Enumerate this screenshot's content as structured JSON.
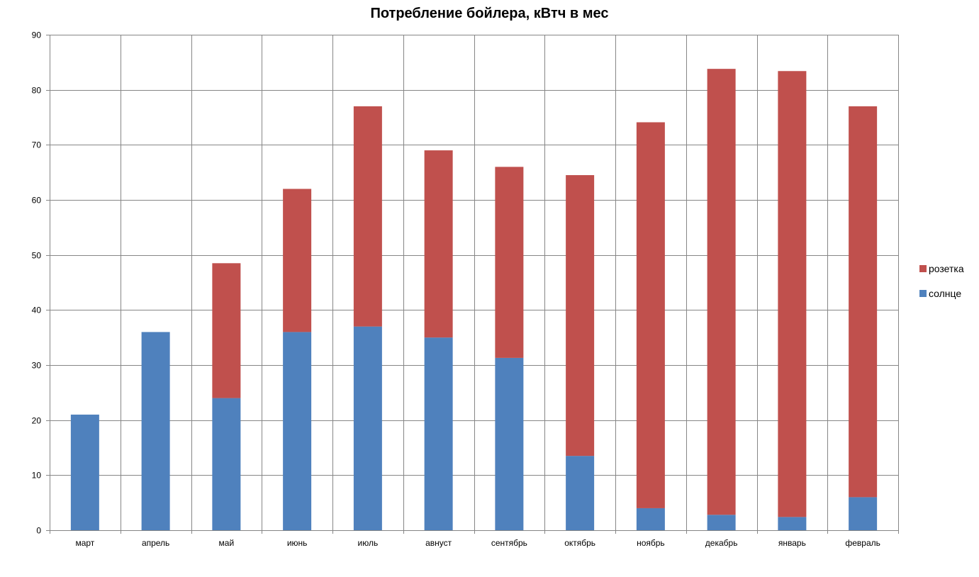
{
  "chart_data": {
    "type": "bar",
    "stacked": true,
    "title": "Потребление бойлера, кВтч в мес",
    "xlabel": "",
    "ylabel": "",
    "ylim": [
      0,
      90
    ],
    "yticks": [
      0,
      10,
      20,
      30,
      40,
      50,
      60,
      70,
      80,
      90
    ],
    "grid": true,
    "legend_position": "right",
    "categories": [
      "март",
      "апрель",
      "май",
      "июнь",
      "июль",
      "авнуст",
      "сентябрь",
      "октябрь",
      "ноябрь",
      "декабрь",
      "январь",
      "февраль"
    ],
    "series": [
      {
        "name": "солнце",
        "color": "#4F81BD",
        "values": [
          21,
          36,
          24,
          36,
          37,
          35,
          31.3,
          13.5,
          4,
          2.8,
          2.4,
          6
        ]
      },
      {
        "name": "розетка",
        "color": "#C0504D",
        "values": [
          0,
          0,
          24.5,
          26,
          40,
          34,
          34.7,
          51,
          70.1,
          81,
          81,
          71
        ]
      }
    ],
    "legend_order": [
      "розетка",
      "солнце"
    ]
  }
}
